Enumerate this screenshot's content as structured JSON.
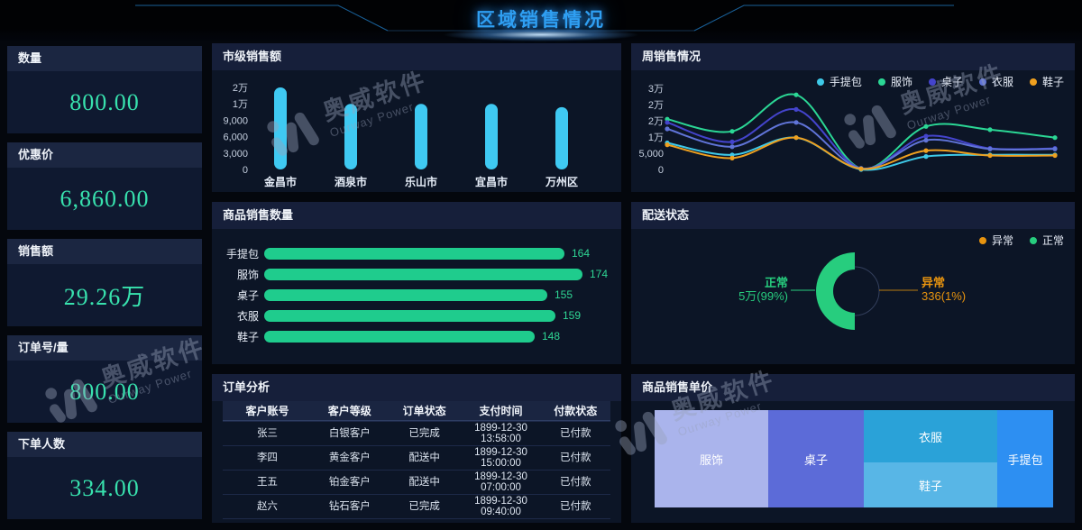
{
  "header": {
    "title": "区域销售情况"
  },
  "watermark": {
    "cn": "奥威软件",
    "en": "Ourway Power"
  },
  "kpis": [
    {
      "label": "数量",
      "value": "800.00"
    },
    {
      "label": "优惠价",
      "value": "6,860.00"
    },
    {
      "label": "销售额",
      "value": "29.26万"
    },
    {
      "label": "订单号/量",
      "value": "800.00"
    },
    {
      "label": "下单人数",
      "value": "334.00"
    }
  ],
  "panels": {
    "city_sales": {
      "title": "市级销售额"
    },
    "weekly": {
      "title": "周销售情况"
    },
    "product_qty": {
      "title": "商品销售数量"
    },
    "delivery": {
      "title": "配送状态"
    },
    "orders": {
      "title": "订单分析"
    },
    "unit_price": {
      "title": "商品销售单价"
    }
  },
  "chart_data": [
    {
      "type": "bar",
      "title": "市级销售额",
      "categories": [
        "金昌市",
        "酒泉市",
        "乐山市",
        "宜昌市",
        "万州区"
      ],
      "values": [
        20000,
        10000,
        10000,
        10000,
        9800
      ],
      "y_tick_labels": [
        "0",
        "3,000",
        "6,000",
        "9,000",
        "1万",
        "2万"
      ],
      "y_tick_values": [
        0,
        3000,
        6000,
        9000,
        10000,
        20000
      ],
      "bar_color": "#3fc9f2",
      "grid": false
    },
    {
      "type": "line",
      "title": "周销售情况",
      "x": [
        1,
        2,
        3,
        4,
        5,
        6,
        7
      ],
      "y_tick_labels": [
        "0",
        "5,000",
        "1万",
        "2万",
        "2万",
        "3万"
      ],
      "y_tick_values": [
        0,
        5000,
        10000,
        20000,
        25000,
        30000
      ],
      "legend_position": "top-right",
      "series": [
        {
          "name": "手提包",
          "color": "#3ec9e8",
          "values": [
            8200,
            4500,
            9800,
            0,
            4000,
            4500,
            4500
          ]
        },
        {
          "name": "服饰",
          "color": "#2bd795",
          "values": [
            20500,
            13500,
            28000,
            300,
            16500,
            14500,
            9800
          ]
        },
        {
          "name": "桌子",
          "color": "#4444cc",
          "values": [
            19000,
            8500,
            23500,
            300,
            10500,
            6500,
            6500
          ]
        },
        {
          "name": "衣服",
          "color": "#6074d8",
          "values": [
            15000,
            7000,
            19000,
            300,
            9000,
            6300,
            6300
          ]
        },
        {
          "name": "鞋子",
          "color": "#efa01f",
          "values": [
            7600,
            3500,
            9800,
            200,
            5800,
            4300,
            4300
          ]
        }
      ]
    },
    {
      "type": "bar",
      "orientation": "horizontal",
      "title": "商品销售数量",
      "categories": [
        "手提包",
        "服饰",
        "桌子",
        "衣服",
        "鞋子"
      ],
      "values": [
        164,
        174,
        155,
        159,
        148
      ],
      "bar_color": "#1fcc8d",
      "value_color": "#2fd795"
    },
    {
      "type": "pie",
      "title": "配送状态",
      "segments": [
        {
          "label": "正常",
          "value_label": "5万",
          "pct_label": "99%",
          "color": "#27cd7e"
        },
        {
          "label": "异常",
          "value_label": "336",
          "pct_label": "1%",
          "color": "#e8940f"
        }
      ]
    },
    {
      "type": "treemap",
      "title": "商品销售单价",
      "items": [
        {
          "label": "服饰",
          "pct": 28.5,
          "color": "#aab4ec"
        },
        {
          "label": "桌子",
          "pct": 24.0,
          "color": "#5c6bd8"
        },
        {
          "label": "衣服",
          "pct": 18.0,
          "color": "#2aa2d8"
        },
        {
          "label": "鞋子",
          "pct": 15.5,
          "color": "#58b6e6"
        },
        {
          "label": "手提包",
          "pct": 14.0,
          "color": "#2d8ff2"
        }
      ]
    },
    {
      "type": "table",
      "title": "订单分析",
      "headers": [
        "客户账号",
        "客户等级",
        "订单状态",
        "支付时间",
        "付款状态"
      ],
      "rows": [
        [
          "张三",
          "白银客户",
          "已完成",
          "1899-12-30 13:58:00",
          "已付款"
        ],
        [
          "李四",
          "黄金客户",
          "配送中",
          "1899-12-30 15:00:00",
          "已付款"
        ],
        [
          "王五",
          "铂金客户",
          "配送中",
          "1899-12-30 07:00:00",
          "已付款"
        ],
        [
          "赵六",
          "钻石客户",
          "已完成",
          "1899-12-30 09:40:00",
          "已付款"
        ]
      ],
      "partial_row": [
        "",
        "",
        "",
        "1899-12-30",
        ""
      ]
    }
  ]
}
